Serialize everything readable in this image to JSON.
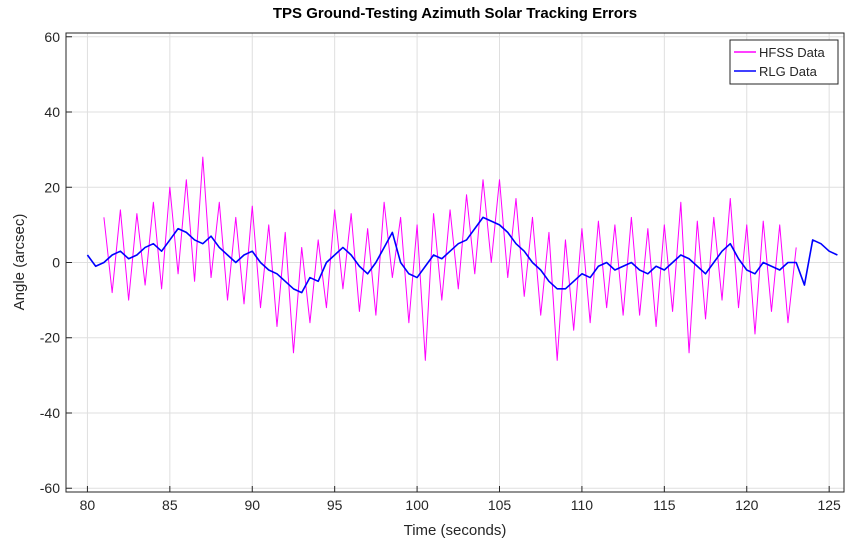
{
  "chart_data": {
    "type": "line",
    "title": "TPS Ground-Testing Azimuth Solar Tracking Errors",
    "x_label": "Time (seconds)",
    "y_label": "Angle (arcsec)",
    "x": [
      80,
      80.5,
      81,
      81.5,
      82,
      82.5,
      83,
      83.5,
      84,
      84.5,
      85,
      85.5,
      86,
      86.5,
      87,
      87.5,
      88,
      88.5,
      89,
      89.5,
      90,
      90.5,
      91,
      91.5,
      92,
      92.5,
      93,
      93.5,
      94,
      94.5,
      95,
      95.5,
      96,
      96.5,
      97,
      97.5,
      98,
      98.5,
      99,
      99.5,
      100,
      100.5,
      101,
      101.5,
      102,
      102.5,
      103,
      103.5,
      104,
      104.5,
      105,
      105.5,
      106,
      106.5,
      107,
      107.5,
      108,
      108.5,
      109,
      109.5,
      110,
      110.5,
      111,
      111.5,
      112,
      112.5,
      113,
      113.5,
      114,
      114.5,
      115,
      115.5,
      116,
      116.5,
      117,
      117.5,
      118,
      118.5,
      119,
      119.5,
      120,
      120.5,
      121,
      121.5,
      122,
      122.5,
      123,
      123.5,
      124,
      124.5,
      125,
      125.5
    ],
    "series": [
      {
        "name": "HFSS Data",
        "color": "#ff00ff",
        "values": [
          null,
          null,
          12,
          -8,
          14,
          -10,
          13,
          -6,
          16,
          -7,
          20,
          -3,
          22,
          -5,
          28,
          -4,
          16,
          -10,
          12,
          -11,
          15,
          -12,
          10,
          -17,
          8,
          -24,
          4,
          -16,
          6,
          -12,
          14,
          -7,
          13,
          -13,
          9,
          -14,
          16,
          -4,
          12,
          -16,
          10,
          -26,
          13,
          -10,
          14,
          -7,
          18,
          -3,
          22,
          0,
          22,
          -4,
          17,
          -9,
          12,
          -14,
          8,
          -26,
          6,
          -18,
          9,
          -16,
          11,
          -12,
          10,
          -14,
          12,
          -14,
          9,
          -17,
          10,
          -13,
          16,
          -24,
          11,
          -15,
          12,
          -10,
          17,
          -12,
          10,
          -19,
          11,
          -13,
          10,
          -16,
          4,
          null,
          null,
          null,
          null,
          null
        ]
      },
      {
        "name": "RLG Data",
        "color": "#0000ff",
        "values": [
          2,
          -1,
          0,
          2,
          3,
          1,
          2,
          4,
          5,
          3,
          6,
          9,
          8,
          6,
          5,
          7,
          4,
          2,
          0,
          2,
          3,
          0,
          -2,
          -3,
          -5,
          -7,
          -8,
          -4,
          -5,
          0,
          2,
          4,
          2,
          -1,
          -3,
          0,
          4,
          8,
          0,
          -3,
          -4,
          -1,
          2,
          1,
          3,
          5,
          6,
          9,
          12,
          11,
          10,
          8,
          5,
          3,
          0,
          -2,
          -5,
          -7,
          -7,
          -5,
          -3,
          -4,
          -1,
          0,
          -2,
          -1,
          0,
          -2,
          -3,
          -1,
          -2,
          0,
          2,
          1,
          -1,
          -3,
          0,
          3,
          5,
          1,
          -2,
          -3,
          0,
          -1,
          -2,
          0,
          0,
          -6,
          6,
          5,
          3,
          2
        ]
      }
    ],
    "xlim": [
      78.7,
      125.9
    ],
    "ylim": [
      -61,
      61
    ],
    "xticks": [
      80,
      85,
      90,
      95,
      100,
      105,
      110,
      115,
      120,
      125
    ],
    "yticks": [
      -60,
      -40,
      -20,
      0,
      20,
      40,
      60
    ],
    "grid": true,
    "legend": "top-right"
  }
}
